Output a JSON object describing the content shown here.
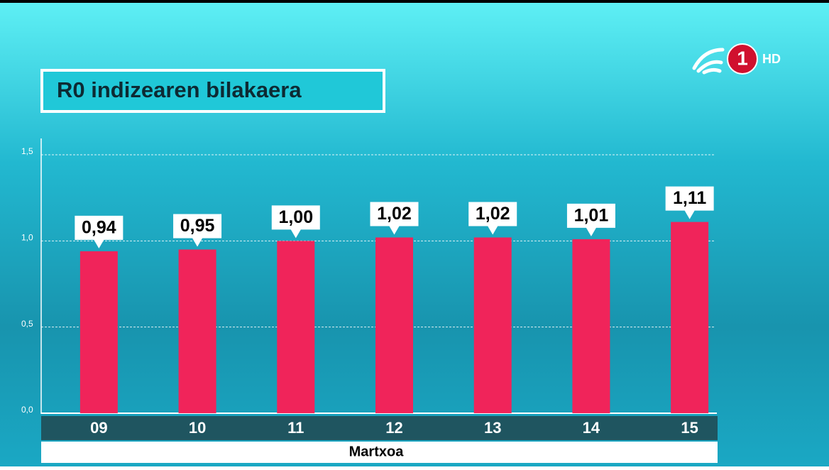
{
  "logo": {
    "channel": "1",
    "quality": "HD"
  },
  "chart_data": {
    "type": "bar",
    "title": "R0 indizearen bilakaera",
    "x_label": "Martxoa",
    "categories": [
      "09",
      "10",
      "11",
      "12",
      "13",
      "14",
      "15"
    ],
    "values": [
      0.94,
      0.95,
      1.0,
      1.02,
      1.02,
      1.01,
      1.11
    ],
    "value_labels": [
      "0,94",
      "0,95",
      "1,00",
      "1,02",
      "1,02",
      "1,01",
      "1,11"
    ],
    "color": "#f0245a",
    "ylim": [
      0,
      1.5
    ],
    "yticks": [
      {
        "value": 0,
        "label": "0,0"
      },
      {
        "value": 0.5,
        "label": "0,5"
      },
      {
        "value": 1,
        "label": "1,0"
      },
      {
        "value": 1.5,
        "label": "1,5"
      }
    ],
    "grid": true
  }
}
